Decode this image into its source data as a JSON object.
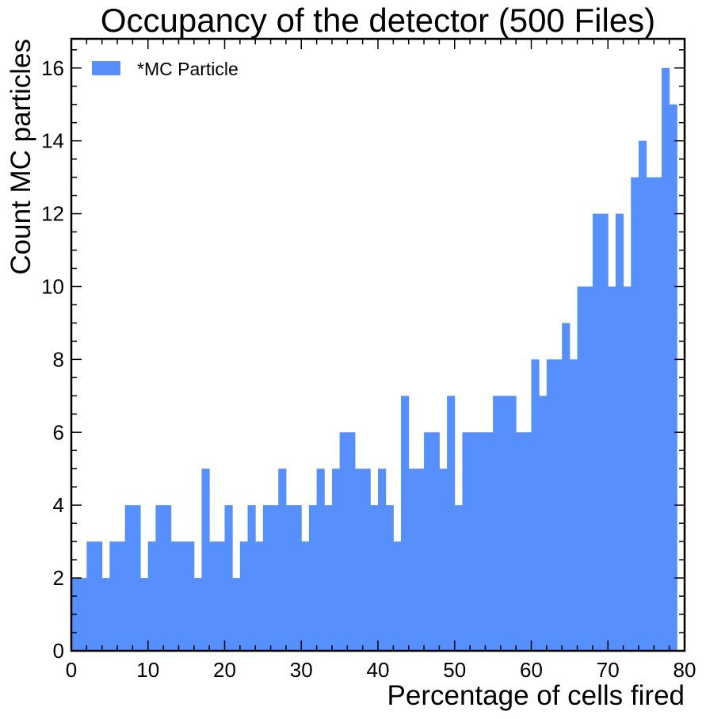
{
  "chart_data": {
    "type": "bar",
    "title": "Occupancy of the detector (500 Files)",
    "xlabel": "Percentage of cells fired",
    "ylabel": "Count MC particles",
    "xlim": [
      0,
      80
    ],
    "ylim": [
      0,
      16.8
    ],
    "xticks": [
      0,
      10,
      20,
      30,
      40,
      50,
      60,
      70,
      80
    ],
    "yticks": [
      0,
      2,
      4,
      6,
      8,
      10,
      12,
      14,
      16
    ],
    "xtick_labels": [
      "0",
      "10",
      "20",
      "30",
      "40",
      "50",
      "60",
      "70",
      "80"
    ],
    "ytick_labels": [
      "0",
      "2",
      "4",
      "6",
      "8",
      "10",
      "12",
      "14",
      "16"
    ],
    "grid": false,
    "legend_position": "top-left",
    "bin_width": 1,
    "series": [
      {
        "name": "*MC Particle",
        "color": "#5790fc",
        "bin_edges_start": 0,
        "values": [
          2,
          2,
          3,
          3,
          2,
          3,
          3,
          4,
          4,
          2,
          3,
          4,
          4,
          3,
          3,
          3,
          2,
          5,
          3,
          3,
          4,
          2,
          3,
          4,
          3,
          4,
          4,
          5,
          4,
          4,
          3,
          4,
          5,
          4,
          5,
          6,
          6,
          5,
          5,
          4,
          5,
          4,
          3,
          7,
          5,
          5,
          6,
          6,
          5,
          7,
          4,
          6,
          6,
          6,
          6,
          7,
          7,
          7,
          6,
          6,
          8,
          7,
          8,
          8,
          9,
          8,
          10,
          10,
          12,
          12,
          10,
          12,
          10,
          13,
          14,
          13,
          13,
          16,
          15
        ]
      }
    ]
  }
}
